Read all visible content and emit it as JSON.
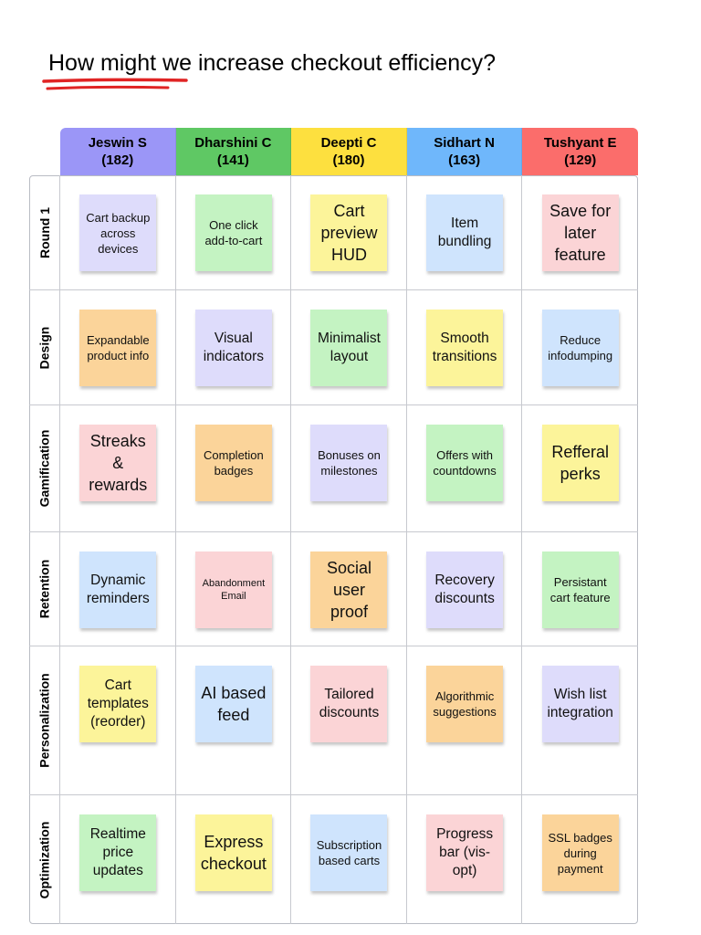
{
  "title": "How might we increase checkout efficiency?",
  "colors": {
    "underline": "#e02424",
    "header_purple": "#9b96f7",
    "header_green": "#5fc864",
    "header_yellow": "#fde03f",
    "header_blue": "#6fb7fb",
    "header_red": "#fb6d6b",
    "note_purple": "#dedcfb",
    "note_green": "#c4f3c2",
    "note_yellow": "#fcf49a",
    "note_blue": "#cfe4fd",
    "note_pink": "#fbd4d6",
    "note_orange": "#fbd49a"
  },
  "columns": [
    {
      "name": "Jeswin S",
      "count": "(182)",
      "color": "#9b96f7"
    },
    {
      "name": "Dharshini C",
      "count": "(141)",
      "color": "#5fc864"
    },
    {
      "name": "Deepti C",
      "count": "(180)",
      "color": "#fde03f"
    },
    {
      "name": "Sidhart N",
      "count": "(163)",
      "color": "#6fb7fb"
    },
    {
      "name": "Tushyant E",
      "count": "(129)",
      "color": "#fb6d6b"
    }
  ],
  "rows": [
    {
      "label": "Round 1",
      "notes": [
        {
          "text": "Cart backup across devices",
          "color": "#dedcfb",
          "size": "m"
        },
        {
          "text": "One click add-to-cart",
          "color": "#c4f3c2",
          "size": "m"
        },
        {
          "text": "Cart preview HUD",
          "color": "#fcf49a",
          "size": "xl"
        },
        {
          "text": "Item bundling",
          "color": "#cfe4fd",
          "size": "l"
        },
        {
          "text": "Save for later feature",
          "color": "#fbd4d6",
          "size": "xl"
        }
      ]
    },
    {
      "label": "Design",
      "notes": [
        {
          "text": "Expandable product info",
          "color": "#fbd49a",
          "size": "m"
        },
        {
          "text": "Visual indicators",
          "color": "#dedcfb",
          "size": "l"
        },
        {
          "text": "Minimalist layout",
          "color": "#c4f3c2",
          "size": "l"
        },
        {
          "text": "Smooth transitions",
          "color": "#fcf49a",
          "size": "l"
        },
        {
          "text": "Reduce infodumping",
          "color": "#cfe4fd",
          "size": "m"
        }
      ]
    },
    {
      "label": "Gamification",
      "notes": [
        {
          "text": "Streaks & rewards",
          "color": "#fbd4d6",
          "size": "xl"
        },
        {
          "text": "Completion badges",
          "color": "#fbd49a",
          "size": "m"
        },
        {
          "text": "Bonuses on milestones",
          "color": "#dedcfb",
          "size": "m"
        },
        {
          "text": "Offers with countdowns",
          "color": "#c4f3c2",
          "size": "m"
        },
        {
          "text": "Refferal perks",
          "color": "#fcf49a",
          "size": "xl"
        }
      ]
    },
    {
      "label": "Retention",
      "notes": [
        {
          "text": "Dynamic reminders",
          "color": "#cfe4fd",
          "size": "l"
        },
        {
          "text": "Abandonment Email",
          "color": "#fbd4d6",
          "size": "s"
        },
        {
          "text": "Social user proof",
          "color": "#fbd49a",
          "size": "xl"
        },
        {
          "text": "Recovery discounts",
          "color": "#dedcfb",
          "size": "l"
        },
        {
          "text": "Persistant cart feature",
          "color": "#c4f3c2",
          "size": "m"
        }
      ]
    },
    {
      "label": "Personalization",
      "notes": [
        {
          "text": "Cart templates (reorder)",
          "color": "#fcf49a",
          "size": "l"
        },
        {
          "text": "AI based feed",
          "color": "#cfe4fd",
          "size": "xl"
        },
        {
          "text": "Tailored discounts",
          "color": "#fbd4d6",
          "size": "l"
        },
        {
          "text": "Algorithmic suggestions",
          "color": "#fbd49a",
          "size": "m"
        },
        {
          "text": "Wish list integration",
          "color": "#dedcfb",
          "size": "l"
        }
      ]
    },
    {
      "label": "Optimization",
      "notes": [
        {
          "text": "Realtime price updates",
          "color": "#c4f3c2",
          "size": "l"
        },
        {
          "text": "Express checkout",
          "color": "#fcf49a",
          "size": "xl"
        },
        {
          "text": "Subscription based carts",
          "color": "#cfe4fd",
          "size": "m"
        },
        {
          "text": "Progress bar (vis-opt)",
          "color": "#fbd4d6",
          "size": "l"
        },
        {
          "text": "SSL badges during payment",
          "color": "#fbd49a",
          "size": "m"
        }
      ]
    }
  ]
}
